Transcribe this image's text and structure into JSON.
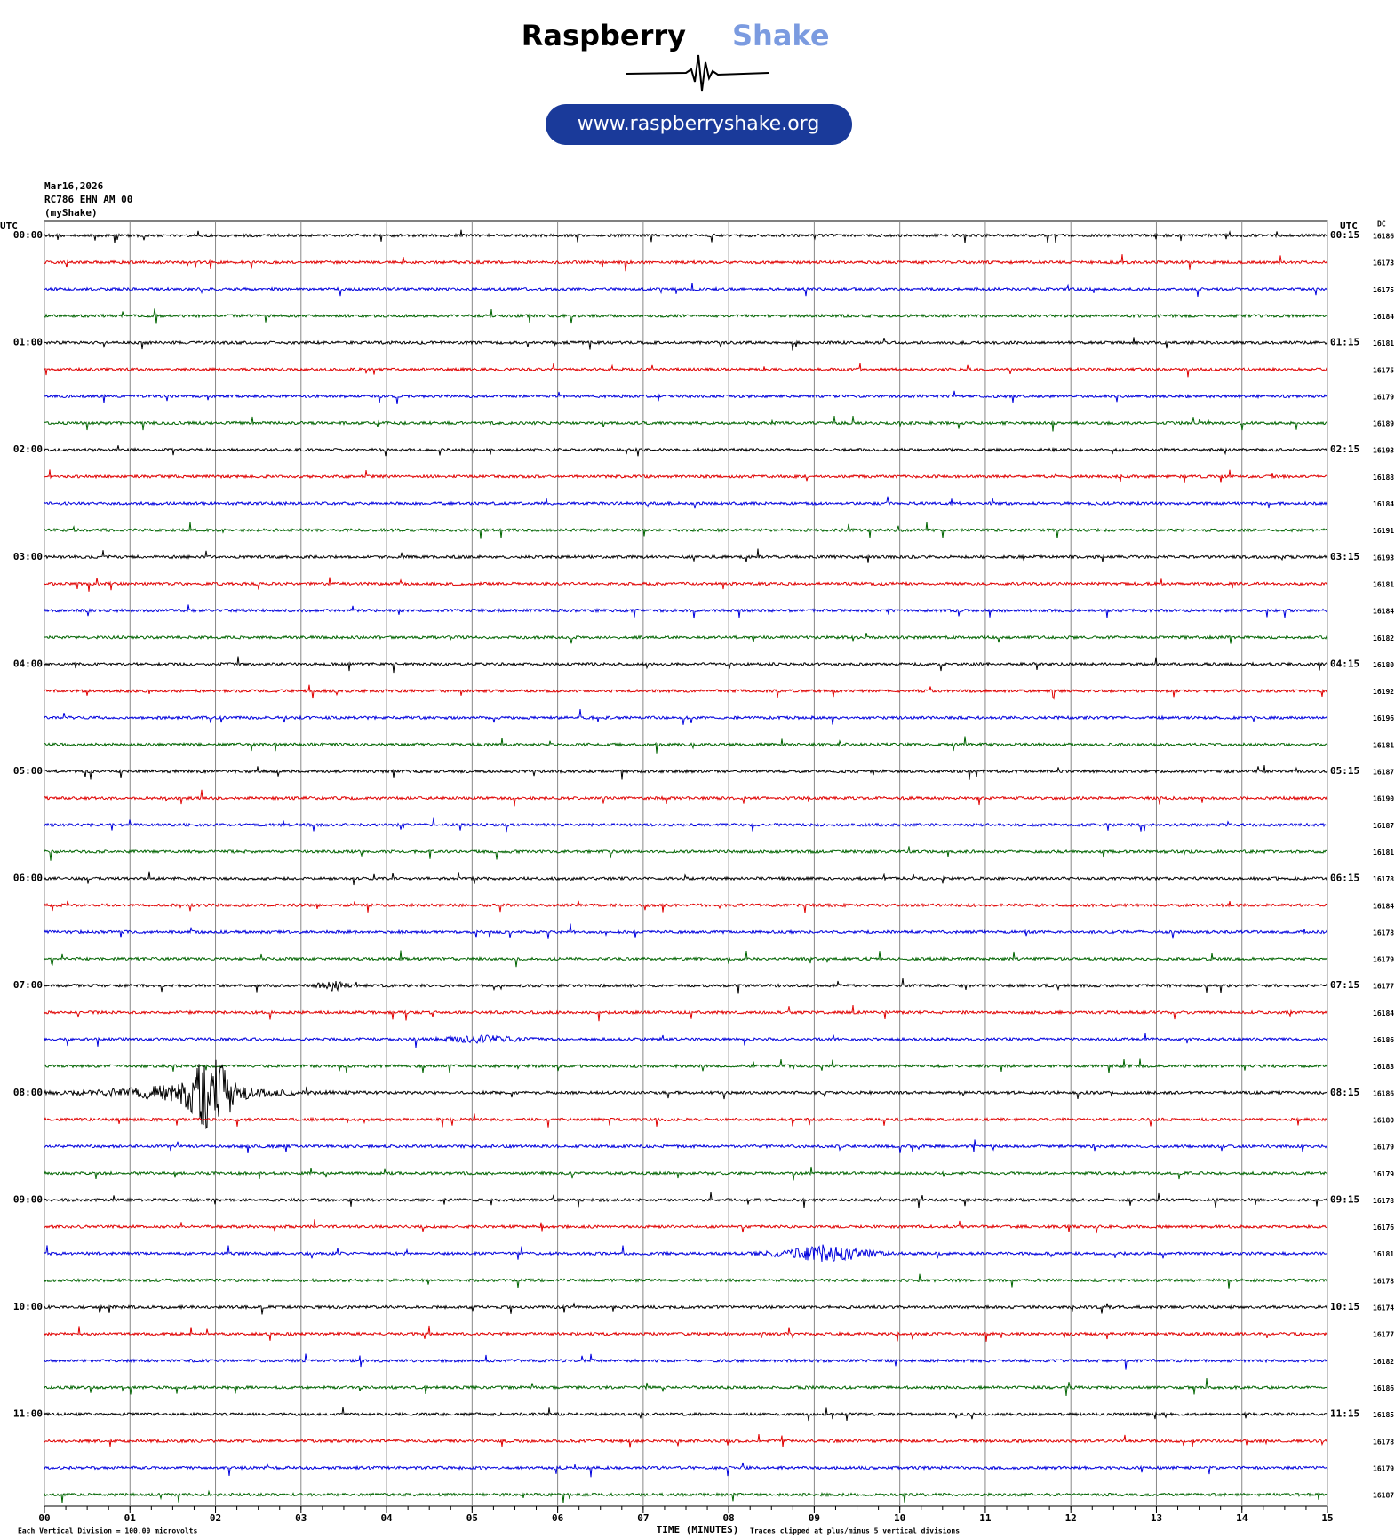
{
  "chart_data": {
    "type": "helicorder",
    "brand": {
      "first": "Raspberry",
      "second": "Shake",
      "url": "www.raspberryshake.org"
    },
    "header": [
      "Mar16,2026",
      "RC786 EHN AM 00",
      "(myShake)"
    ],
    "left_axis_title": "UTC",
    "right_axis_title": "UTC",
    "dc_title": "DC",
    "colors": [
      "#000000",
      "#e00000",
      "#0000dd",
      "#006400"
    ],
    "left_labels": [
      "00:00",
      "01:00",
      "02:00",
      "03:00",
      "04:00",
      "05:00",
      "06:00",
      "07:00",
      "08:00",
      "09:00",
      "10:00",
      "11:00"
    ],
    "right_labels": [
      "00:15",
      "01:15",
      "02:15",
      "03:15",
      "04:15",
      "05:15",
      "06:15",
      "07:15",
      "08:15",
      "09:15",
      "10:15",
      "11:15"
    ],
    "dc_values": [
      16186,
      16173,
      16175,
      16184,
      16181,
      16175,
      16179,
      16189,
      16193,
      16188,
      16184,
      16191,
      16193,
      16181,
      16184,
      16182,
      16180,
      16192,
      16196,
      16181,
      16187,
      16190,
      16187,
      16181,
      16178,
      16184,
      16178,
      16179,
      16177,
      16184,
      16186,
      16183,
      16186,
      16180,
      16179,
      16179,
      16178,
      16176,
      16181,
      16178,
      16174,
      16177,
      16182,
      16186,
      16185,
      16178,
      16179,
      16187
    ],
    "xlim": [
      0,
      15
    ],
    "xticks": [
      {
        "value": 0,
        "label": "00"
      },
      {
        "value": 1,
        "label": "01"
      },
      {
        "value": 2,
        "label": "02"
      },
      {
        "value": 3,
        "label": "03"
      },
      {
        "value": 4,
        "label": "04"
      },
      {
        "value": 5,
        "label": "05"
      },
      {
        "value": 6,
        "label": "06"
      },
      {
        "value": 7,
        "label": "07"
      },
      {
        "value": 8,
        "label": "08"
      },
      {
        "value": 9,
        "label": "09"
      },
      10,
      11,
      12,
      13,
      14,
      15
    ],
    "xlabel": "TIME (MINUTES)",
    "scale_note": "Each Vertical Division =  100.00 microvolts",
    "clip_note": "Traces clipped at plus/minus 5 vertical divisions"
  }
}
